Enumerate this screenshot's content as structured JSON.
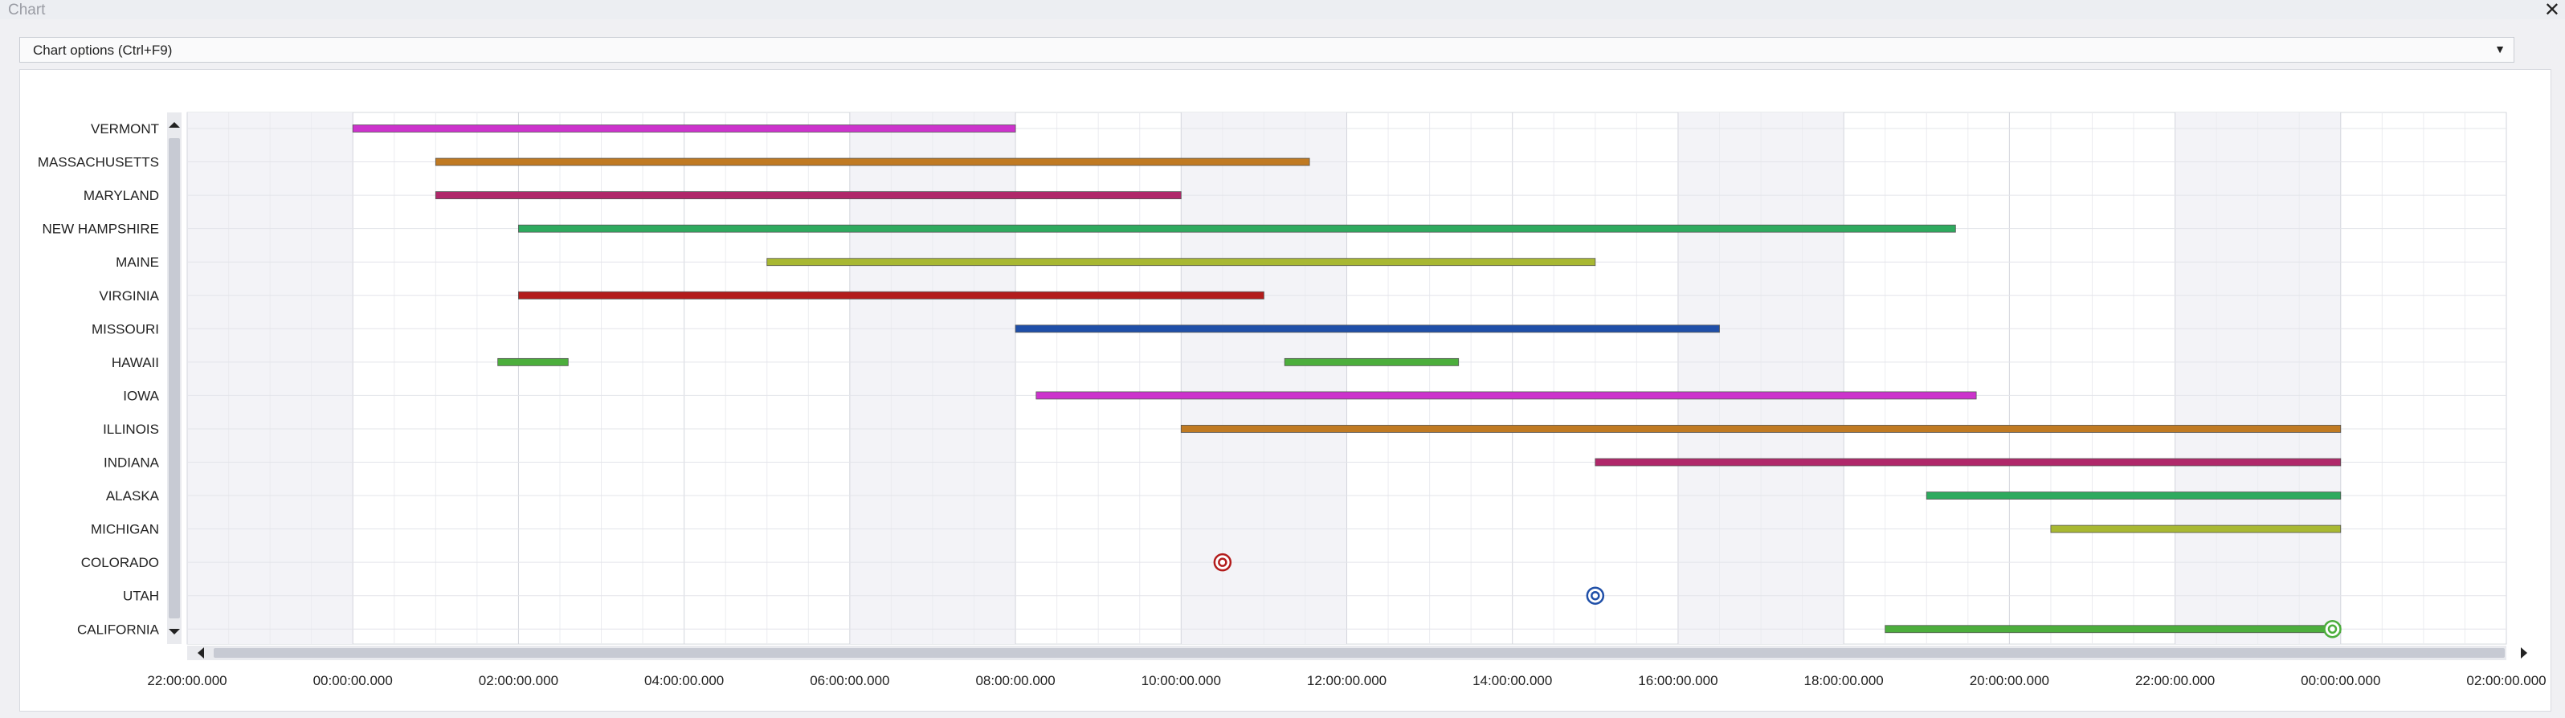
{
  "window": {
    "title": "Chart",
    "close_icon": "close-icon"
  },
  "toolbar": {
    "options_label": "Chart options (Ctrl+F9)",
    "dropdown_icon": "caret-down-icon"
  },
  "chart_data": {
    "type": "gantt",
    "x_axis": {
      "ticks": [
        "22:00:00.000",
        "00:00:00.000",
        "02:00:00.000",
        "04:00:00.000",
        "06:00:00.000",
        "08:00:00.000",
        "10:00:00.000",
        "12:00:00.000",
        "14:00:00.000",
        "16:00:00.000",
        "18:00:00.000",
        "20:00:00.000",
        "22:00:00.000",
        "00:00:00.000",
        "02:00:00.000"
      ],
      "range_hours": [
        -2,
        26
      ]
    },
    "rows": [
      {
        "label": "VERMONT",
        "color": "#cc33cc",
        "bars": [
          [
            0,
            8
          ]
        ]
      },
      {
        "label": "MASSACHUSETTS",
        "color": "#c07a22",
        "bars": [
          [
            1,
            11.55
          ]
        ]
      },
      {
        "label": "MARYLAND",
        "color": "#b0286a",
        "bars": [
          [
            1,
            10
          ]
        ]
      },
      {
        "label": "NEW HAMPSHIRE",
        "color": "#2eaa5e",
        "bars": [
          [
            2,
            19.35
          ]
        ]
      },
      {
        "label": "MAINE",
        "color": "#a8b832",
        "bars": [
          [
            5,
            15
          ]
        ]
      },
      {
        "label": "VIRGINIA",
        "color": "#b31c1c",
        "bars": [
          [
            2,
            11
          ]
        ]
      },
      {
        "label": "MISSOURI",
        "color": "#1f4fa8",
        "bars": [
          [
            8,
            16.5
          ]
        ]
      },
      {
        "label": "HAWAII",
        "color": "#4cae3c",
        "bars": [
          [
            1.75,
            2.6
          ],
          [
            11.25,
            13.35
          ]
        ]
      },
      {
        "label": "IOWA",
        "color": "#cc33cc",
        "bars": [
          [
            8.25,
            19.6
          ]
        ]
      },
      {
        "label": "ILLINOIS",
        "color": "#c07a22",
        "bars": [
          [
            10,
            24
          ]
        ]
      },
      {
        "label": "INDIANA",
        "color": "#b0286a",
        "bars": [
          [
            15,
            24
          ]
        ]
      },
      {
        "label": "ALASKA",
        "color": "#2eaa5e",
        "bars": [
          [
            19,
            24
          ]
        ]
      },
      {
        "label": "MICHIGAN",
        "color": "#a8b832",
        "bars": [
          [
            20.5,
            24
          ]
        ]
      },
      {
        "label": "COLORADO",
        "color": "#b31c1c",
        "markers": [
          10.5
        ]
      },
      {
        "label": "UTAH",
        "color": "#1f4fa8",
        "markers": [
          15
        ]
      },
      {
        "label": "CALIFORNIA",
        "color": "#4cae3c",
        "bars": [
          [
            18.5,
            24
          ]
        ],
        "markers": [
          23.9
        ]
      }
    ],
    "grid": true,
    "shaded_bands": [
      [
        -2,
        0
      ],
      [
        6,
        8
      ],
      [
        10,
        12
      ],
      [
        16,
        18
      ],
      [
        22,
        24
      ]
    ]
  },
  "scroll": {
    "up_icon": "scroll-up-arrow-icon",
    "down_icon": "scroll-down-arrow-icon",
    "left_icon": "scroll-left-arrow-icon",
    "right_icon": "scroll-right-arrow-icon"
  }
}
